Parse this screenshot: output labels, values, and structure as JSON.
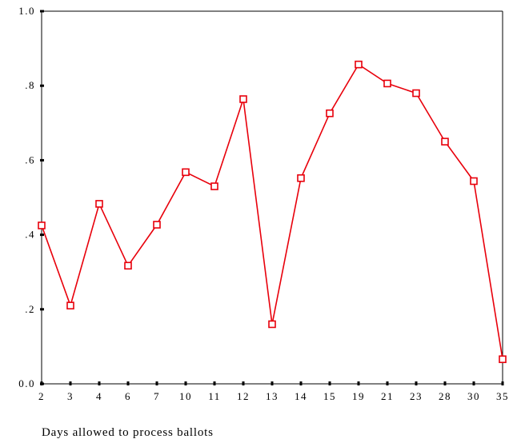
{
  "chart_data": {
    "type": "line",
    "title": "",
    "xlabel": "Days allowed to process ballots",
    "ylabel": "",
    "categories": [
      "2",
      "3",
      "4",
      "6",
      "7",
      "10",
      "11",
      "12",
      "13",
      "14",
      "15",
      "19",
      "21",
      "23",
      "28",
      "30",
      "35"
    ],
    "y_tick_labels": [
      "0.0",
      ".2",
      ".4",
      ".6",
      ".8",
      "1.0"
    ],
    "ylim": [
      0,
      1
    ],
    "grid": false,
    "legend": "none",
    "series": [
      {
        "values": [
          0.425,
          0.21,
          0.483,
          0.317,
          0.427,
          0.568,
          0.53,
          0.764,
          0.16,
          0.552,
          0.726,
          0.857,
          0.806,
          0.78,
          0.65,
          0.544,
          0.066
        ],
        "color": "#e8000b",
        "marker": "hollow-square"
      }
    ]
  }
}
